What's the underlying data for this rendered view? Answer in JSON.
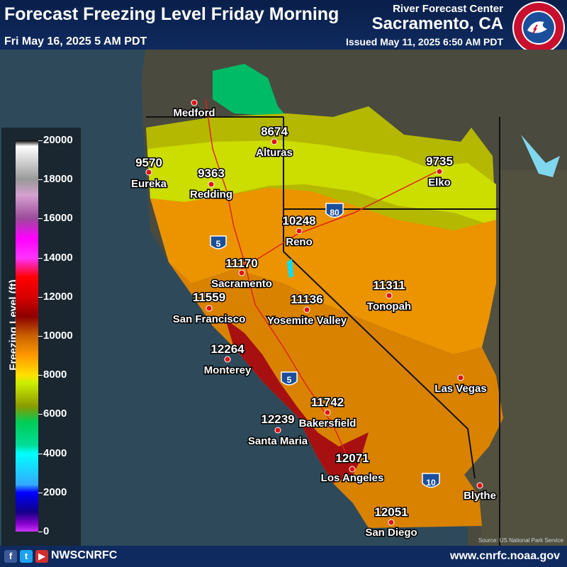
{
  "header": {
    "title": "Forecast Freezing Level Friday Morning",
    "subtitle": "Fri May 16, 2025 5 AM PDT",
    "rfc_line1": "River Forecast Center",
    "rfc_line2": "Sacramento, CA",
    "issued": "Issued May 11, 2025 6:50 AM PDT",
    "logo_text": "NATIONAL WEATHER SERVICE"
  },
  "legend": {
    "title": "Freezing Level (ft)",
    "ticks": [
      "20000",
      "18000",
      "16000",
      "14000",
      "12000",
      "10000",
      "8000",
      "6000",
      "4000",
      "2000",
      "0"
    ]
  },
  "map": {
    "locations": [
      {
        "name": "Medford",
        "value": ""
      },
      {
        "name": "Alturas",
        "value": "8674"
      },
      {
        "name": "Eureka",
        "value": "9570"
      },
      {
        "name": "Redding",
        "value": "9363"
      },
      {
        "name": "Elko",
        "value": "9735"
      },
      {
        "name": "Reno",
        "value": "10248"
      },
      {
        "name": "Sacramento",
        "value": "11170"
      },
      {
        "name": "San Francisco",
        "value": "11559"
      },
      {
        "name": "Yosemite Valley",
        "value": "11136"
      },
      {
        "name": "Tonopah",
        "value": "11311"
      },
      {
        "name": "Monterey",
        "value": "12264"
      },
      {
        "name": "Las Vegas",
        "value": ""
      },
      {
        "name": "Bakersfield",
        "value": "11742"
      },
      {
        "name": "Santa Maria",
        "value": "12239"
      },
      {
        "name": "Los Angeles",
        "value": "12071"
      },
      {
        "name": "Blythe",
        "value": ""
      },
      {
        "name": "San Diego",
        "value": "12051"
      }
    ],
    "shields": [
      "5",
      "80",
      "5",
      "10"
    ],
    "credit": "Source: US National Park Service",
    "colors": {
      "ocean": "#2e4a5a",
      "land": "#4a4a3e",
      "dark_red": "#a61010",
      "orange": "#d98200",
      "light_orange": "#eb9400",
      "yellow": "#ccdd00",
      "olive": "#b4b800",
      "green": "#00bb66"
    }
  },
  "footer": {
    "social_icons": [
      "facebook-icon",
      "twitter-icon",
      "youtube-icon"
    ],
    "handle": "NWSCNRFC",
    "website": "www.cnrfc.noaa.gov"
  }
}
